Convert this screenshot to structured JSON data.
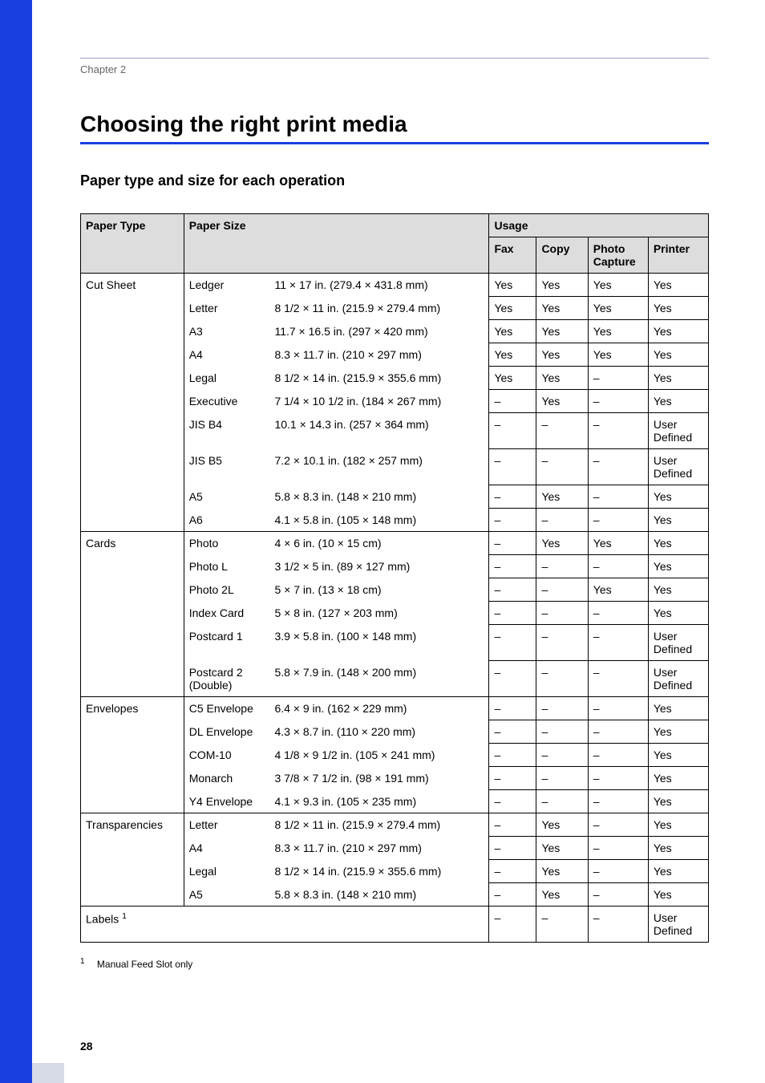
{
  "chapter_label": "Chapter 2",
  "h1": "Choosing the right print media",
  "h2": "Paper type and size for each operation",
  "headers": {
    "paper_type": "Paper Type",
    "paper_size": "Paper Size",
    "usage": "Usage",
    "fax": "Fax",
    "copy": "Copy",
    "photo_capture": "Photo Capture",
    "printer": "Printer"
  },
  "groups": [
    {
      "type": "Cut Sheet",
      "rows": [
        {
          "name": "Ledger",
          "dim": "11 × 17 in. (279.4 × 431.8 mm)",
          "fax": "Yes",
          "copy": "Yes",
          "photo": "Yes",
          "printer": "Yes"
        },
        {
          "name": "Letter",
          "dim": "8 1/2 × 11 in. (215.9 × 279.4 mm)",
          "fax": "Yes",
          "copy": "Yes",
          "photo": "Yes",
          "printer": "Yes"
        },
        {
          "name": "A3",
          "dim": "11.7 × 16.5 in. (297 × 420 mm)",
          "fax": "Yes",
          "copy": "Yes",
          "photo": "Yes",
          "printer": "Yes"
        },
        {
          "name": "A4",
          "dim": "8.3 × 11.7 in. (210 × 297 mm)",
          "fax": "Yes",
          "copy": "Yes",
          "photo": "Yes",
          "printer": "Yes"
        },
        {
          "name": "Legal",
          "dim": "8 1/2 × 14 in. (215.9 × 355.6 mm)",
          "fax": "Yes",
          "copy": "Yes",
          "photo": "–",
          "printer": "Yes"
        },
        {
          "name": "Executive",
          "dim": "7 1/4 × 10 1/2 in. (184 × 267 mm)",
          "fax": "–",
          "copy": "Yes",
          "photo": "–",
          "printer": "Yes"
        },
        {
          "name": "JIS B4",
          "dim": "10.1 × 14.3 in. (257 × 364 mm)",
          "fax": "–",
          "copy": "–",
          "photo": "–",
          "printer": "User Defined"
        },
        {
          "name": "JIS B5",
          "dim": "7.2 × 10.1 in. (182 × 257 mm)",
          "fax": "–",
          "copy": "–",
          "photo": "–",
          "printer": "User Defined"
        },
        {
          "name": "A5",
          "dim": "5.8 × 8.3 in. (148 × 210 mm)",
          "fax": "–",
          "copy": "Yes",
          "photo": "–",
          "printer": "Yes"
        },
        {
          "name": "A6",
          "dim": "4.1 × 5.8 in. (105 × 148 mm)",
          "fax": "–",
          "copy": "–",
          "photo": "–",
          "printer": "Yes"
        }
      ]
    },
    {
      "type": "Cards",
      "rows": [
        {
          "name": "Photo",
          "dim": "4 × 6 in. (10 × 15 cm)",
          "fax": "–",
          "copy": "Yes",
          "photo": "Yes",
          "printer": "Yes"
        },
        {
          "name": "Photo L",
          "dim": "3 1/2 × 5 in. (89 × 127 mm)",
          "fax": "–",
          "copy": "–",
          "photo": "–",
          "printer": "Yes"
        },
        {
          "name": "Photo 2L",
          "dim": "5 × 7 in. (13 × 18 cm)",
          "fax": "–",
          "copy": "–",
          "photo": "Yes",
          "printer": "Yes"
        },
        {
          "name": "Index Card",
          "dim": "5 × 8 in. (127 × 203 mm)",
          "fax": "–",
          "copy": "–",
          "photo": "–",
          "printer": "Yes"
        },
        {
          "name": "Postcard 1",
          "dim": "3.9 × 5.8 in. (100 × 148 mm)",
          "fax": "–",
          "copy": "–",
          "photo": "–",
          "printer": "User Defined"
        },
        {
          "name": "Postcard 2 (Double)",
          "dim": "5.8 × 7.9 in. (148 × 200 mm)",
          "fax": "–",
          "copy": "–",
          "photo": "–",
          "printer": "User Defined"
        }
      ]
    },
    {
      "type": "Envelopes",
      "rows": [
        {
          "name": "C5 Envelope",
          "dim": "6.4 × 9 in. (162 × 229 mm)",
          "fax": "–",
          "copy": "–",
          "photo": "–",
          "printer": "Yes"
        },
        {
          "name": "DL Envelope",
          "dim": "4.3 × 8.7 in. (110 × 220 mm)",
          "fax": "–",
          "copy": "–",
          "photo": "–",
          "printer": "Yes"
        },
        {
          "name": "COM-10",
          "dim": "4 1/8 × 9 1/2 in. (105 × 241 mm)",
          "fax": "–",
          "copy": "–",
          "photo": "–",
          "printer": "Yes"
        },
        {
          "name": "Monarch",
          "dim": "3 7/8 × 7 1/2 in. (98 × 191 mm)",
          "fax": "–",
          "copy": "–",
          "photo": "–",
          "printer": "Yes"
        },
        {
          "name": "Y4 Envelope",
          "dim": "4.1 × 9.3 in. (105 × 235 mm)",
          "fax": "–",
          "copy": "–",
          "photo": "–",
          "printer": "Yes"
        }
      ]
    },
    {
      "type": "Transparencies",
      "rows": [
        {
          "name": "Letter",
          "dim": "8 1/2 × 11 in. (215.9 × 279.4 mm)",
          "fax": "–",
          "copy": "Yes",
          "photo": "–",
          "printer": "Yes"
        },
        {
          "name": "A4",
          "dim": "8.3 × 11.7 in. (210 × 297 mm)",
          "fax": "–",
          "copy": "Yes",
          "photo": "–",
          "printer": "Yes"
        },
        {
          "name": "Legal",
          "dim": "8 1/2 × 14 in. (215.9 × 355.6 mm)",
          "fax": "–",
          "copy": "Yes",
          "photo": "–",
          "printer": "Yes"
        },
        {
          "name": "A5",
          "dim": "5.8 × 8.3 in. (148 × 210 mm)",
          "fax": "–",
          "copy": "Yes",
          "photo": "–",
          "printer": "Yes"
        }
      ]
    }
  ],
  "labels_row": {
    "label_prefix": "Labels",
    "sup": "1",
    "fax": "–",
    "copy": "–",
    "photo": "–",
    "printer": "User Defined"
  },
  "footnote": {
    "sup": "1",
    "text": "Manual Feed Slot only"
  },
  "page_number": "28",
  "colors": {
    "sidebar": "#1a3fe0",
    "header_bg": "#dddddd",
    "rule": "#1a3fe0",
    "top_rule": "#9aa0c8",
    "text_muted": "#666666"
  }
}
